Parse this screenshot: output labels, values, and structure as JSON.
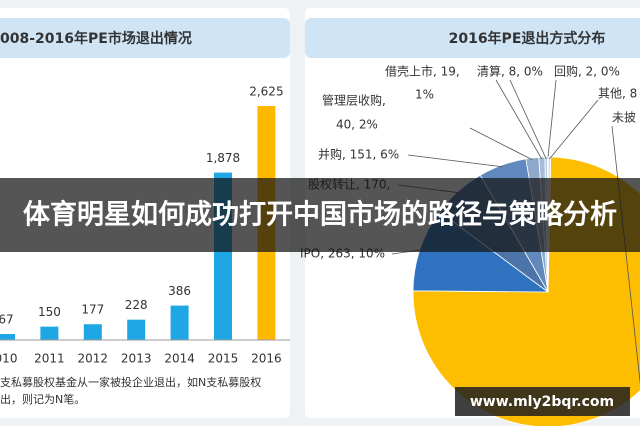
{
  "chart_data": [
    {
      "type": "bar",
      "title": "008-2016年PE市场退出情况",
      "categories": [
        "010",
        "2011",
        "2012",
        "2013",
        "2014",
        "2015",
        "2016"
      ],
      "values": [
        67,
        150,
        177,
        228,
        386,
        1878,
        2625
      ],
      "value_labels": [
        "67",
        "150",
        "177",
        "228",
        "386",
        "1,878",
        "2,625"
      ],
      "colors": [
        "#1ea7e4",
        "#1ea7e4",
        "#1ea7e4",
        "#1ea7e4",
        "#1ea7e4",
        "#1ea7e4",
        "#ffb800"
      ],
      "note": [
        "支私募股权基金从一家被投企业退出，如N支私募股权",
        "出，则记为N笔。"
      ]
    },
    {
      "type": "pie",
      "title": "2016年PE退出方式分布",
      "values": [
        1964,
        263,
        170,
        151,
        40,
        19,
        8,
        2,
        8
      ],
      "value_labels": [
        [
          "未披"
        ],
        [
          "IPO, 263, 10%"
        ],
        [
          "股权转让, 170,"
        ],
        [
          "并购, 151, 6%"
        ],
        [
          "管理层收购,",
          "40, 2%"
        ],
        [
          "借壳上市, 19,",
          "1%"
        ],
        [
          "清算, 8, 0%"
        ],
        [
          "回购, 2, 0%"
        ],
        [
          "其他, 8"
        ]
      ],
      "colors": [
        "#fdbd00",
        "#2e72c0",
        "#4d74a8",
        "#6289bd",
        "#8fa9cc",
        "#a8bcd8",
        "#b8c8de",
        "#c8d4e6",
        "#d6dfec"
      ]
    }
  ],
  "banner": "体育明星如何成功打开中国市场的路径与策略分析",
  "watermark": "www.mly2bqr.com"
}
